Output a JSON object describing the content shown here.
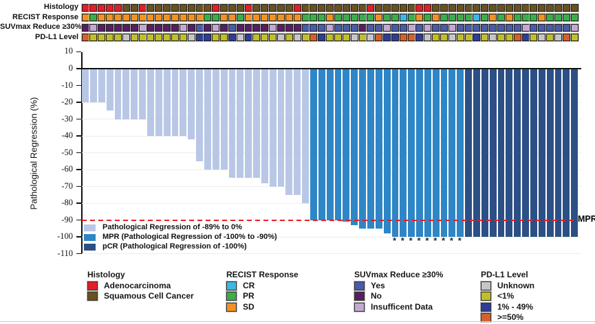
{
  "figure": {
    "mpr_line_label": "MPR",
    "asterisk_glyph": "*",
    "track_rows": [
      {
        "id": "histology",
        "label": "Histology"
      },
      {
        "id": "recist",
        "label": "RECIST Response"
      },
      {
        "id": "suvmax",
        "label": "SUVmax Reduce ≥30%"
      },
      {
        "id": "pdl1",
        "label": "PD-L1 Level"
      }
    ]
  },
  "chart_data": {
    "type": "bar",
    "title": "",
    "xlabel": "",
    "ylabel": "Pathological Regression (%)",
    "ylim": [
      -110,
      10
    ],
    "yticks": [
      10,
      0,
      -10,
      -20,
      -30,
      -40,
      -50,
      -60,
      -70,
      -80,
      -90,
      -100,
      -110
    ],
    "grid": true,
    "legend_position": "bottom-left inside plot",
    "n_patients": 61,
    "mpr_threshold": -90,
    "values": [
      -20,
      -20,
      -20,
      -25,
      -30,
      -30,
      -30,
      -30,
      -40,
      -40,
      -40,
      -40,
      -40,
      -42,
      -55,
      -60,
      -60,
      -60,
      -65,
      -65,
      -65,
      -65,
      -68,
      -70,
      -70,
      -75,
      -75,
      -80,
      -90,
      -90,
      -90,
      -90,
      -91,
      -93,
      -95,
      -95,
      -95,
      -98,
      -100,
      -100,
      -100,
      -100,
      -100,
      -100,
      -100,
      -100,
      -100,
      -100,
      -100,
      -100,
      -100,
      -100,
      -100,
      -100,
      -100,
      -100,
      -100,
      -100,
      -100,
      -100,
      -100
    ],
    "bar_classes": [
      "reg",
      "reg",
      "reg",
      "reg",
      "reg",
      "reg",
      "reg",
      "reg",
      "reg",
      "reg",
      "reg",
      "reg",
      "reg",
      "reg",
      "reg",
      "reg",
      "reg",
      "reg",
      "reg",
      "reg",
      "reg",
      "reg",
      "reg",
      "reg",
      "reg",
      "reg",
      "reg",
      "reg",
      "mpr",
      "mpr",
      "mpr",
      "mpr",
      "mpr",
      "mpr",
      "mpr",
      "mpr",
      "mpr",
      "mpr",
      "mpr",
      "mpr",
      "mpr",
      "mpr",
      "mpr",
      "mpr",
      "mpr",
      "mpr",
      "mpr",
      "pcr",
      "pcr",
      "pcr",
      "pcr",
      "pcr",
      "pcr",
      "pcr",
      "pcr",
      "pcr",
      "pcr",
      "pcr",
      "pcr",
      "pcr",
      "pcr"
    ],
    "asterisk_bars": [
      39,
      40,
      41,
      42,
      43,
      44,
      45,
      46,
      47
    ],
    "bar_legend": [
      {
        "class": "reg",
        "label": "Pathological Regression of -89% to 0%",
        "color": "#b9c7e6"
      },
      {
        "class": "mpr",
        "label": "MPR (Pathological Regression of -100% to -90%)",
        "color": "#2e86c6"
      },
      {
        "class": "pcr",
        "label": "pCR (Pathological Regression of -100%)",
        "color": "#2c5085"
      }
    ],
    "annotations": {
      "histology": [
        "A",
        "A",
        "A",
        "A",
        "A",
        "S",
        "S",
        "A",
        "S",
        "S",
        "S",
        "S",
        "S",
        "S",
        "S",
        "S",
        "A",
        "S",
        "S",
        "S",
        "A",
        "S",
        "S",
        "S",
        "S",
        "S",
        "A",
        "S",
        "S",
        "S",
        "S",
        "S",
        "S",
        "S",
        "S",
        "A",
        "S",
        "S",
        "S",
        "S",
        "S",
        "A",
        "A",
        "S",
        "S",
        "S",
        "S",
        "S",
        "S",
        "S",
        "S",
        "S",
        "S",
        "S",
        "S",
        "S",
        "S",
        "S",
        "S",
        "S",
        "S"
      ],
      "recist": [
        "SD",
        "PR",
        "SD",
        "SD",
        "SD",
        "SD",
        "SD",
        "SD",
        "SD",
        "SD",
        "SD",
        "SD",
        "SD",
        "SD",
        "SD",
        "PR",
        "PR",
        "SD",
        "SD",
        "PR",
        "SD",
        "SD",
        "SD",
        "SD",
        "SD",
        "SD",
        "SD",
        "PR",
        "PR",
        "PR",
        "SD",
        "PR",
        "PR",
        "PR",
        "PR",
        "PR",
        "SD",
        "PR",
        "PR",
        "CR",
        "PR",
        "SD",
        "PR",
        "SD",
        "PR",
        "PR",
        "PR",
        "PR",
        "CR",
        "PR",
        "SD",
        "PR",
        "SD",
        "PR",
        "PR",
        "PR",
        "SD",
        "PR",
        "PR",
        "PR",
        "PR"
      ],
      "suvmax": [
        "No",
        "Ins",
        "No",
        "No",
        "No",
        "No",
        "No",
        "Ins",
        "No",
        "No",
        "No",
        "No",
        "Ins",
        "No",
        "Yes",
        "No",
        "Ins",
        "No",
        "Yes",
        "No",
        "No",
        "No",
        "No",
        "Ins",
        "No",
        "No",
        "No",
        "Yes",
        "Yes",
        "Yes",
        "Ins",
        "Yes",
        "Yes",
        "Yes",
        "No",
        "Yes",
        "Yes",
        "Ins",
        "Yes",
        "Yes",
        "Ins",
        "Yes",
        "Ins",
        "Yes",
        "Yes",
        "Ins",
        "Yes",
        "Yes",
        "Yes",
        "Yes",
        "Yes",
        "Yes",
        "Yes",
        "Yes",
        "Ins",
        "Yes",
        "Yes",
        "Yes",
        "Yes",
        "Yes",
        "Ins"
      ],
      "pdl1": [
        "Ge50",
        "Lt1",
        "Lt1",
        "Lt1",
        "Lt1",
        "Unk",
        "Lt1",
        "Lt1",
        "Lt1",
        "Lt1",
        "Lt1",
        "Lt1",
        "Lt1",
        "Unk",
        "Mid",
        "Mid",
        "Lt1",
        "Lt1",
        "Mid",
        "Unk",
        "Mid",
        "Lt1",
        "Lt1",
        "Lt1",
        "Unk",
        "Lt1",
        "Unk",
        "Lt1",
        "Ge50",
        "Mid",
        "Lt1",
        "Lt1",
        "Lt1",
        "Unk",
        "Lt1",
        "Unk",
        "Ge50",
        "Mid",
        "Mid",
        "Ge50",
        "Ge50",
        "Mid",
        "Unk",
        "Lt1",
        "Lt1",
        "Unk",
        "Lt1",
        "Lt1",
        "Mid",
        "Lt1",
        "Unk",
        "Lt1",
        "Lt1",
        "Ge50",
        "Mid",
        "Lt1",
        "Unk",
        "Lt1",
        "Unk",
        "Ge50",
        "Lt1"
      ]
    }
  },
  "legend_groups": [
    {
      "key": "histology",
      "title": "Histology",
      "items": [
        {
          "code": "A",
          "label": "Adenocarcinoma",
          "color": "#e21e26"
        },
        {
          "code": "S",
          "label": "Squamous Cell Cancer",
          "color": "#6a521f"
        }
      ]
    },
    {
      "key": "recist",
      "title": "RECIST Response",
      "items": [
        {
          "code": "CR",
          "label": "CR",
          "color": "#3db7e4"
        },
        {
          "code": "PR",
          "label": "PR",
          "color": "#3aae49"
        },
        {
          "code": "SD",
          "label": "SD",
          "color": "#f29221"
        }
      ]
    },
    {
      "key": "suvmax",
      "title": "SUVmax Reduce ≥30%",
      "items": [
        {
          "code": "Yes",
          "label": "Yes",
          "color": "#4a5ca8"
        },
        {
          "code": "No",
          "label": "No",
          "color": "#571f63"
        },
        {
          "code": "Ins",
          "label": "Insufficent Data",
          "color": "#c4a8d2"
        }
      ]
    },
    {
      "key": "pdl1",
      "title": "PD-L1 Level",
      "items": [
        {
          "code": "Unk",
          "label": "Unknown",
          "color": "#c6c6c6"
        },
        {
          "code": "Lt1",
          "label": "<1%",
          "color": "#c0bf2b"
        },
        {
          "code": "Mid",
          "label": "1% - 49%",
          "color": "#2e3d96"
        },
        {
          "code": "Ge50",
          "label": ">=50%",
          "color": "#d2622b"
        }
      ]
    }
  ]
}
